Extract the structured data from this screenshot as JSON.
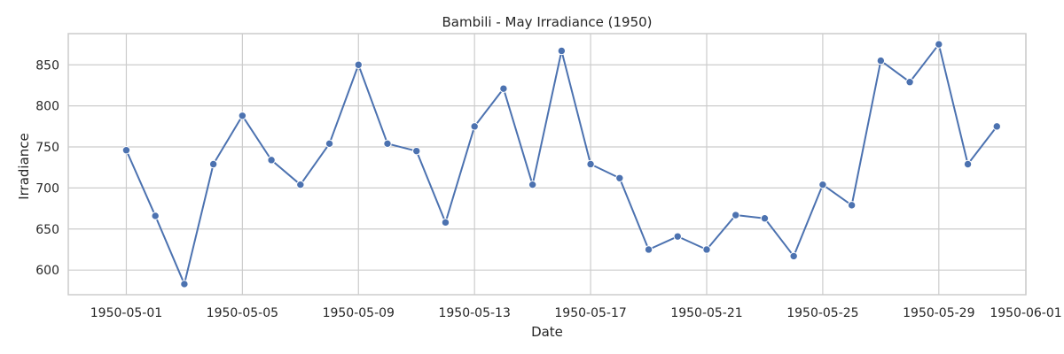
{
  "chart_data": {
    "type": "line",
    "title": "Bambili - May Irradiance (1950)",
    "xlabel": "Date",
    "ylabel": "Irradiance",
    "grid": true,
    "xlim": [
      "1950-04-29",
      "1950-06-01"
    ],
    "ylim": [
      570,
      888
    ],
    "x_ticks": [
      "1950-05-01",
      "1950-05-05",
      "1950-05-09",
      "1950-05-13",
      "1950-05-17",
      "1950-05-21",
      "1950-05-25",
      "1950-05-29",
      "1950-06-01"
    ],
    "y_ticks": [
      600,
      650,
      700,
      750,
      800,
      850
    ],
    "colors": {
      "line": "#4c72b0",
      "grid": "#cccccc"
    },
    "series": [
      {
        "x": [
          "1950-05-01",
          "1950-05-02",
          "1950-05-03",
          "1950-05-04",
          "1950-05-05",
          "1950-05-06",
          "1950-05-07",
          "1950-05-08",
          "1950-05-09",
          "1950-05-10",
          "1950-05-11",
          "1950-05-12",
          "1950-05-13",
          "1950-05-14",
          "1950-05-15",
          "1950-05-16",
          "1950-05-17",
          "1950-05-18",
          "1950-05-19",
          "1950-05-20",
          "1950-05-21",
          "1950-05-22",
          "1950-05-23",
          "1950-05-24",
          "1950-05-25",
          "1950-05-26",
          "1950-05-27",
          "1950-05-28",
          "1950-05-29",
          "1950-05-30",
          "1950-05-31"
        ],
        "values": [
          746,
          666,
          583,
          729,
          788,
          734,
          704,
          754,
          850,
          754,
          745,
          658,
          775,
          821,
          704,
          867,
          729,
          712,
          625,
          641,
          625,
          667,
          663,
          617,
          704,
          679,
          855,
          829,
          875,
          729,
          775
        ]
      }
    ]
  }
}
